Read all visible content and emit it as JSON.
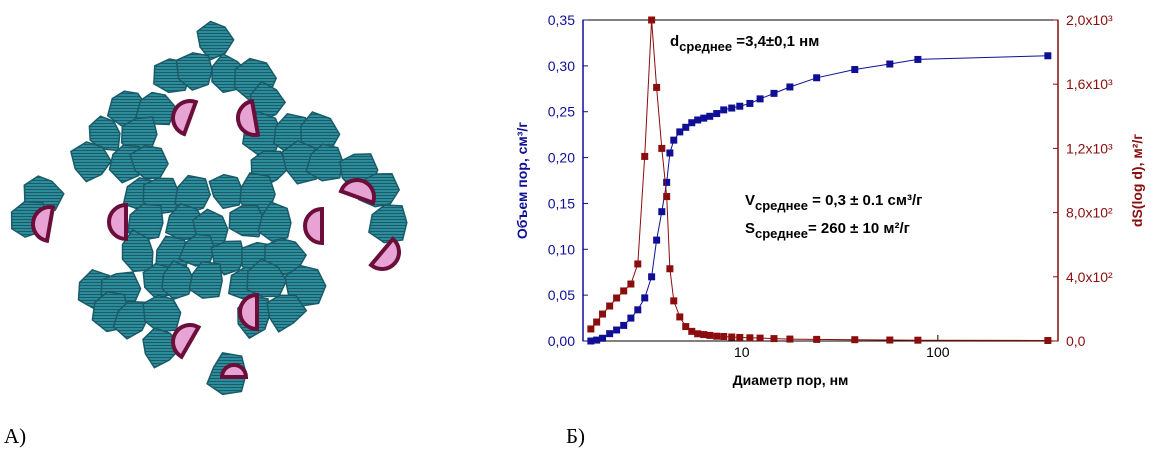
{
  "panel_labels": [
    "А)",
    "Б)"
  ],
  "chart_data": {
    "type": "scatter",
    "xlabel": "Диаметр пор, нм",
    "ylabel": "Объем пор, см³/г",
    "y2label": "dS(log d), м²/г",
    "xscale": "log",
    "xlim": [
      1.55,
      410
    ],
    "xticks": [
      10,
      100
    ],
    "ylim": [
      0,
      0.35
    ],
    "yticks": [
      {
        "value": 0,
        "label": "0,00"
      },
      {
        "value": 0.05,
        "label": "0,05"
      },
      {
        "value": 0.1,
        "label": "0,10"
      },
      {
        "value": 0.15,
        "label": "0,15"
      },
      {
        "value": 0.2,
        "label": "0,20"
      },
      {
        "value": 0.25,
        "label": "0,25"
      },
      {
        "value": 0.3,
        "label": "0,30"
      },
      {
        "value": 0.35,
        "label": "0,35"
      }
    ],
    "y2lim": [
      0,
      2000
    ],
    "y2ticks": [
      {
        "value": 0,
        "label": "0,0"
      },
      {
        "value": 400,
        "label": "4,0x10²"
      },
      {
        "value": 800,
        "label": "8,0x10²"
      },
      {
        "value": 1200,
        "label": "1,2x10³"
      },
      {
        "value": 1600,
        "label": "1,6x10³"
      },
      {
        "value": 2000,
        "label": "2,0x10³"
      }
    ],
    "x": [
      1.7,
      1.82,
      1.95,
      2.12,
      2.3,
      2.5,
      2.72,
      2.95,
      3.2,
      3.47,
      3.68,
      3.91,
      4.14,
      4.3,
      4.5,
      4.83,
      5.18,
      5.56,
      5.96,
      6.4,
      6.87,
      7.45,
      8.09,
      8.89,
      9.77,
      11.0,
      12.4,
      14.6,
      17.6,
      24.1,
      37.7,
      56.9,
      79.1,
      364
    ],
    "series": [
      {
        "color": "#0f0f96",
        "axis": "y",
        "values": [
          0.0,
          0.001,
          0.003,
          0.008,
          0.012,
          0.017,
          0.025,
          0.034,
          0.047,
          0.07,
          0.11,
          0.141,
          0.173,
          0.205,
          0.219,
          0.228,
          0.233,
          0.238,
          0.241,
          0.243,
          0.245,
          0.248,
          0.252,
          0.254,
          0.256,
          0.259,
          0.264,
          0.27,
          0.277,
          0.287,
          0.296,
          0.302,
          0.307,
          0.311
        ]
      },
      {
        "color": "#8b0d0d",
        "axis": "y2",
        "values": [
          75,
          118,
          168,
          218,
          268,
          312,
          355,
          480,
          1150,
          2000,
          1580,
          1200,
          900,
          450,
          250,
          150,
          90,
          60,
          45,
          40,
          35,
          30,
          28,
          25,
          22,
          20,
          18,
          15,
          12,
          10,
          8,
          6,
          5,
          3
        ]
      }
    ],
    "annotations": [
      {
        "parts": [
          "d",
          "среднее",
          " =3,4±0,1 нм"
        ]
      },
      {
        "parts": [
          "V",
          "среднее",
          " = 0,3 ± 0.1 см³/г"
        ]
      },
      {
        "parts": [
          "S",
          "среднее",
          "= 260 ± 10 м²/г"
        ]
      }
    ]
  }
}
